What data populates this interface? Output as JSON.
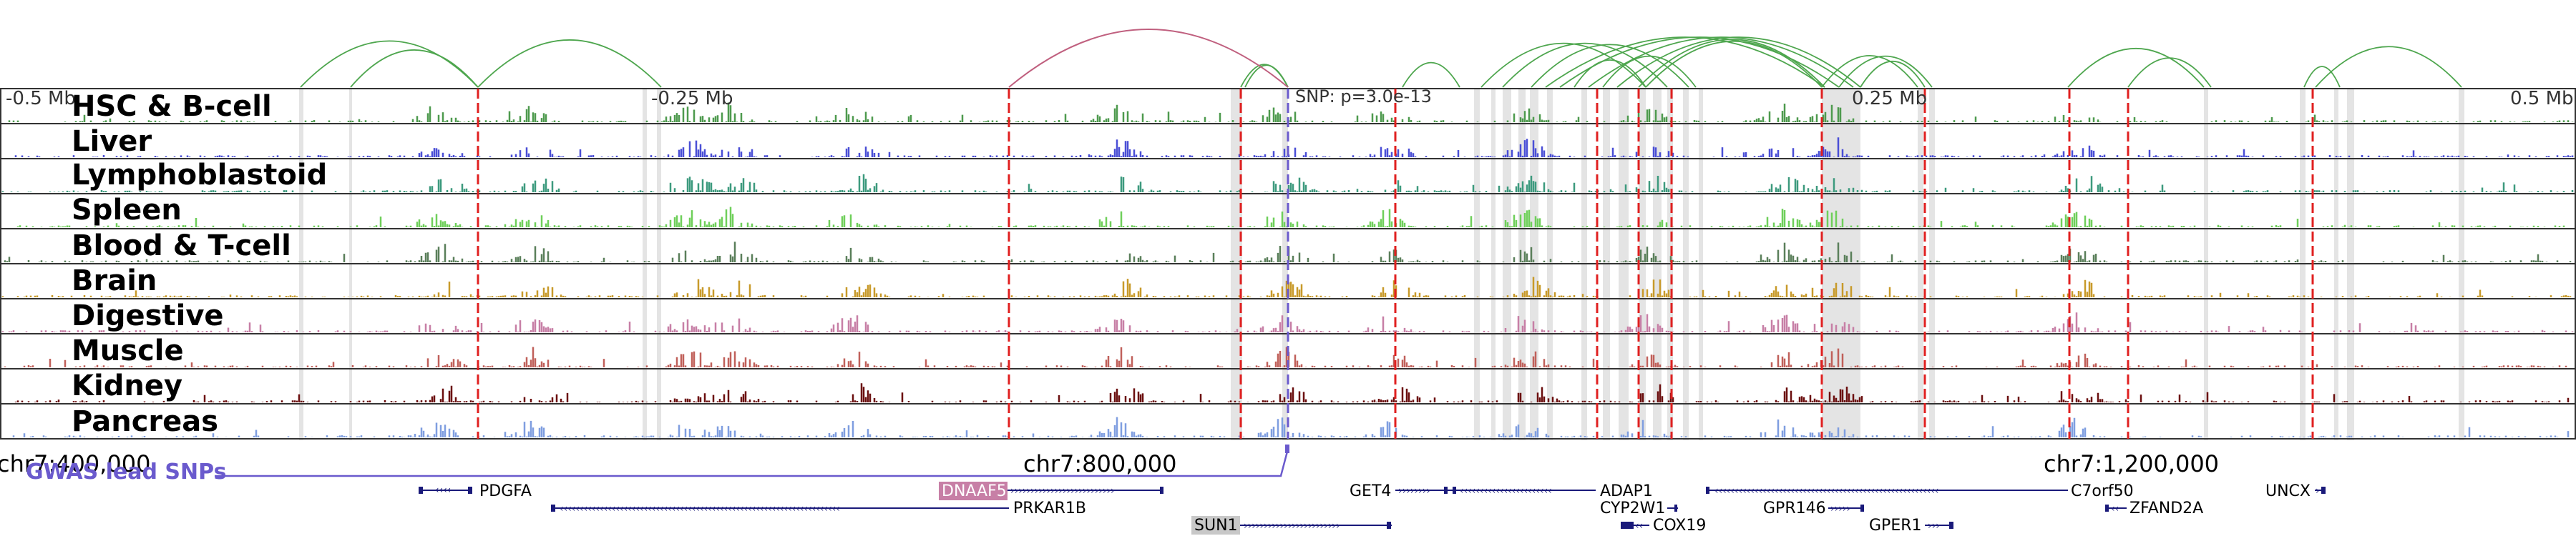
{
  "scale": {
    "left": "-0.5 Mb",
    "left_mid": "-0.25 Mb",
    "right_mid": "0.25 Mb",
    "right": "0.5 Mb"
  },
  "snp_annotation": "SNP: p=3.0e-13",
  "coordinates": [
    "chr7:400,000",
    "chr7:800,000",
    "chr7:1,200,000"
  ],
  "gwas_label": "GWAS lead SNPs",
  "tracks": [
    {
      "name": "HSC & B-cell",
      "color": "#4e9a4e"
    },
    {
      "name": "Liver",
      "color": "#4a4fd6"
    },
    {
      "name": "Lymphoblastoid",
      "color": "#3d9a7e"
    },
    {
      "name": "Spleen",
      "color": "#6fcf5a"
    },
    {
      "name": "Blood & T-cell",
      "color": "#5a7f5a"
    },
    {
      "name": "Brain",
      "color": "#c89a2a"
    },
    {
      "name": "Digestive",
      "color": "#c77fa6"
    },
    {
      "name": "Muscle",
      "color": "#c0605a"
    },
    {
      "name": "Kidney",
      "color": "#6b0f0f"
    },
    {
      "name": "Pancreas",
      "color": "#7f9ee0"
    }
  ],
  "genes": [
    {
      "name": "PDGFA",
      "highlight": false
    },
    {
      "name": "DNAAF5",
      "highlight": true
    },
    {
      "name": "PRKAR1B",
      "highlight": false
    },
    {
      "name": "SUN1",
      "highlight": true
    },
    {
      "name": "GET4",
      "highlight": false
    },
    {
      "name": "ADAP1",
      "highlight": false
    },
    {
      "name": "CYP2W1",
      "highlight": false
    },
    {
      "name": "COX19",
      "highlight": false
    },
    {
      "name": "GPR146",
      "highlight": false
    },
    {
      "name": "GPER1",
      "highlight": false
    },
    {
      "name": "C7orf50",
      "highlight": false
    },
    {
      "name": "ZFAND2A",
      "highlight": false
    },
    {
      "name": "UNCX",
      "highlight": false
    }
  ],
  "colors": {
    "arc_green": "#4ea64e",
    "arc_pink": "#c0607f",
    "highlight_line": "#e02020",
    "gwas": "#6a5acd",
    "gene": "#1a1a7a"
  }
}
